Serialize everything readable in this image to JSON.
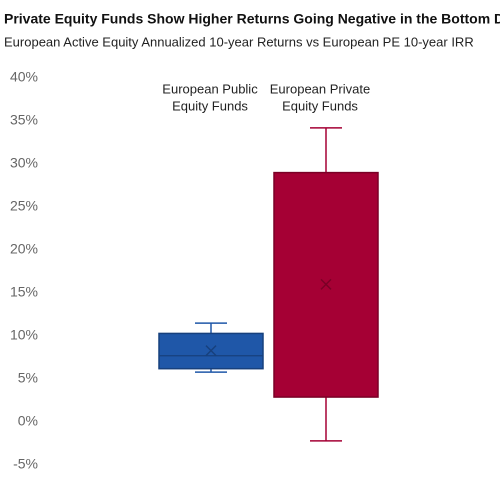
{
  "chart_data": {
    "type": "box",
    "title": "Private Equity Funds Show Higher Returns Going Negative in the Bottom Decile",
    "subtitle": "European Active Equity Annualized 10-year Returns vs European PE 10-year IRR",
    "categories": [
      [
        "European Public",
        "Equity Funds"
      ],
      [
        "European Private",
        "Equity Funds"
      ]
    ],
    "colors": [
      "#1f57a8",
      "#a50034"
    ],
    "whisker_high": [
      11.5,
      34.2
    ],
    "q3": [
      10.3,
      29.0
    ],
    "median": [
      7.7,
      null
    ],
    "mean": [
      8.3,
      16.0
    ],
    "q1": [
      6.2,
      2.9
    ],
    "whisker_low": [
      5.8,
      -2.2
    ],
    "ylim": [
      -5,
      40
    ],
    "yticks": [
      {
        "value": -5,
        "label": "-5%"
      },
      {
        "value": 0,
        "label": "0%"
      },
      {
        "value": 5,
        "label": "5%"
      },
      {
        "value": 10,
        "label": "10%"
      },
      {
        "value": 15,
        "label": "15%"
      },
      {
        "value": 20,
        "label": "20%"
      },
      {
        "value": 25,
        "label": "25%"
      },
      {
        "value": 30,
        "label": "30%"
      },
      {
        "value": 35,
        "label": "35%"
      },
      {
        "value": 40,
        "label": "40%"
      }
    ]
  }
}
